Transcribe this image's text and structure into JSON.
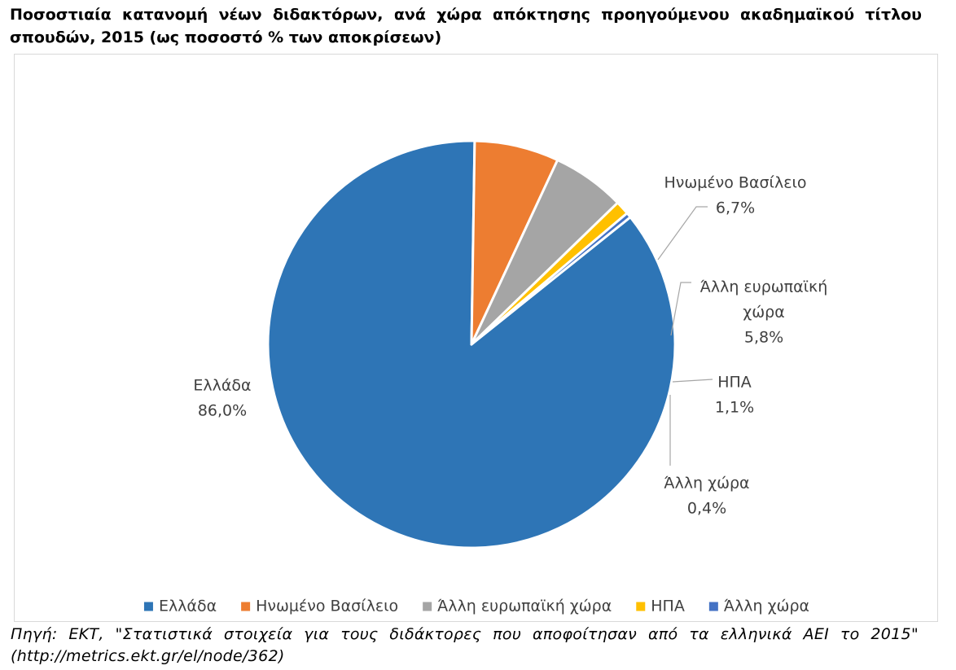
{
  "title": "Ποσοστιαία κατανομή νέων διδακτόρων, ανά χώρα απόκτησης προηγούμενου ακαδημαϊκού τίτλου σπουδών, 2015 (ως ποσοστό % των αποκρίσεων)",
  "source": "Πηγή: ΕΚΤ, \"Στατιστικά στοιχεία για τους διδάκτορες που αποφοίτησαν από τα ελληνικά ΑΕΙ το 2015\" (http://metrics.ekt.gr/el/node/362)",
  "chart_data": {
    "type": "pie",
    "legend_position": "bottom",
    "slices": [
      {
        "label": "Ελλάδα",
        "label_lines": [
          "Ελλάδα"
        ],
        "value": 86.0,
        "value_label": "86,0%",
        "color": "#2e75b6"
      },
      {
        "label": "Ηνωμένο Βασίλειο",
        "label_lines": [
          "Ηνωμένο Βασίλειο"
        ],
        "value": 6.7,
        "value_label": "6,7%",
        "color": "#ed7d31"
      },
      {
        "label": "Άλλη ευρωπαϊκή χώρα",
        "label_lines": [
          "Άλλη ευρωπαϊκή",
          "χώρα"
        ],
        "value": 5.8,
        "value_label": "5,8%",
        "color": "#a5a5a5"
      },
      {
        "label": "ΗΠΑ",
        "label_lines": [
          "ΗΠΑ"
        ],
        "value": 1.1,
        "value_label": "1,1%",
        "color": "#ffc000"
      },
      {
        "label": "Άλλη χώρα",
        "label_lines": [
          "Άλλη χώρα"
        ],
        "value": 0.4,
        "value_label": "0,4%",
        "color": "#4472c4"
      }
    ]
  }
}
